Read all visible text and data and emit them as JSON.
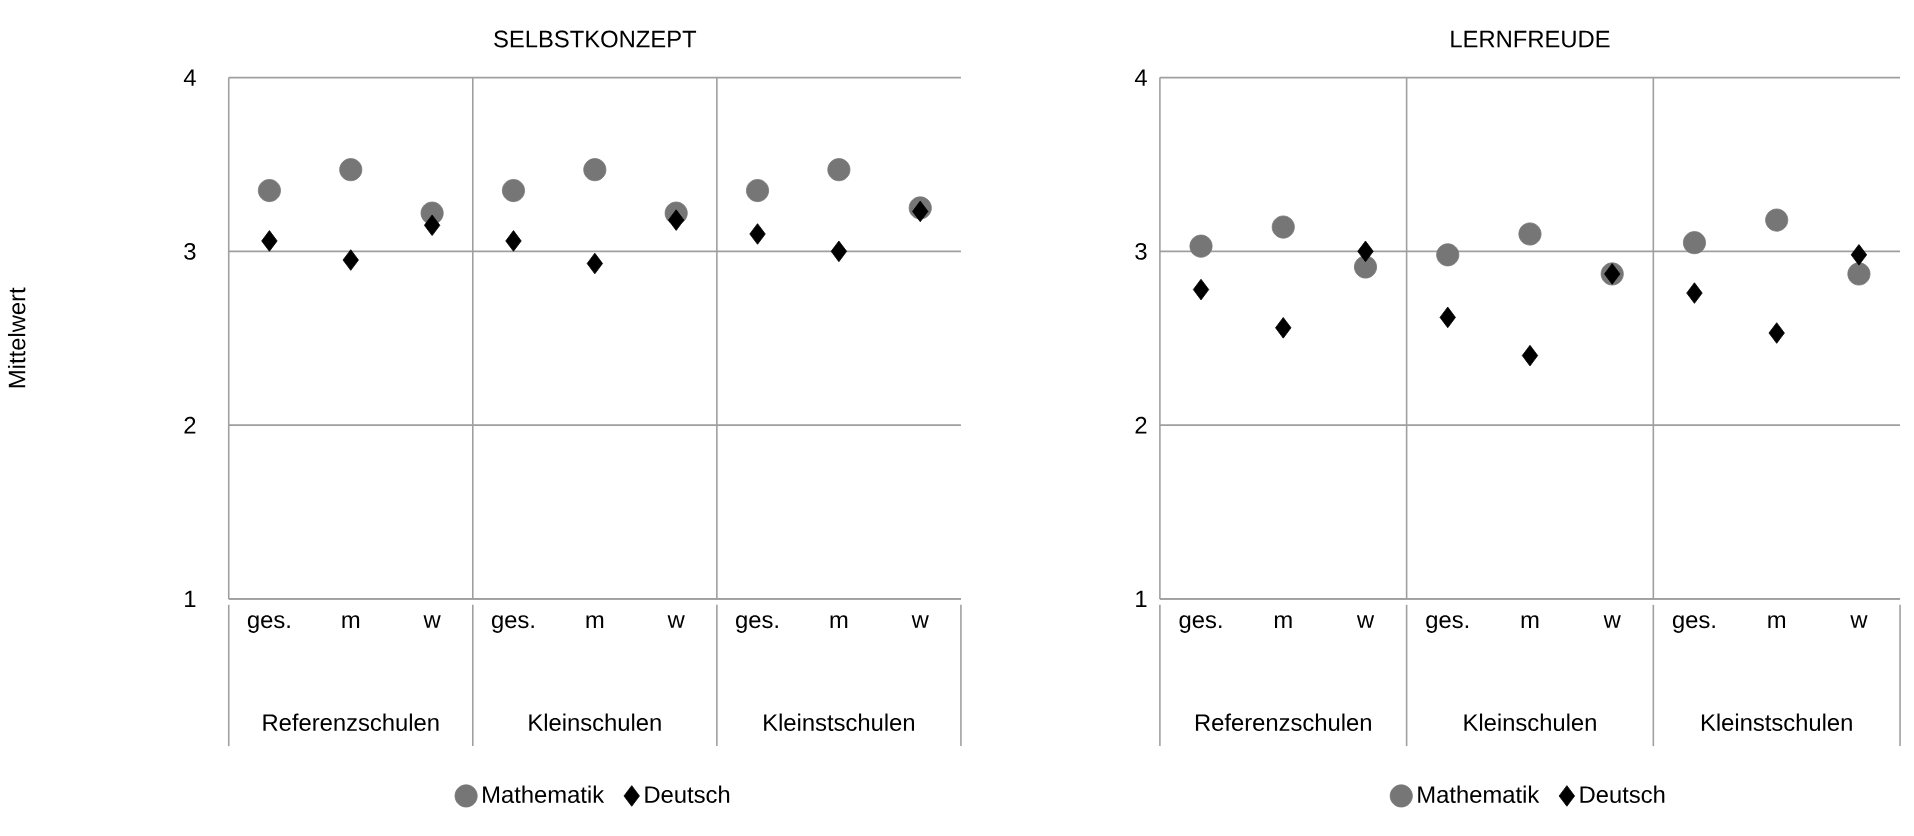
{
  "chart_data": [
    {
      "type": "scatter",
      "title": "SELBSTKONZEPT",
      "ylabel": "Mittelwert",
      "categories": [
        "ges.",
        "m",
        "w",
        "ges.",
        "m",
        "w",
        "ges.",
        "m",
        "w"
      ],
      "annotations": [
        "Referenzschulen",
        "Kleinschulen",
        "Kleinstschulen"
      ],
      "series": [
        {
          "name": "Mathematik",
          "color": "#767676",
          "marker": "circle",
          "values": [
            3.35,
            3.47,
            3.22,
            3.35,
            3.47,
            3.22,
            3.35,
            3.47,
            3.25
          ]
        },
        {
          "name": "Deutsch",
          "color": "#000000",
          "marker": "diamond",
          "values": [
            3.06,
            2.95,
            3.15,
            3.06,
            2.93,
            3.18,
            3.1,
            3.0,
            3.23
          ]
        }
      ],
      "ylim": [
        1,
        4
      ],
      "yticks": [
        1,
        2,
        3,
        4
      ],
      "grid": "y",
      "legend": "bottom"
    },
    {
      "type": "scatter",
      "title": "LERNFREUDE",
      "categories": [
        "ges.",
        "m",
        "w",
        "ges.",
        "m",
        "w",
        "ges.",
        "m",
        "w"
      ],
      "annotations": [
        "Referenzschulen",
        "Kleinschulen",
        "Kleinstschulen"
      ],
      "series": [
        {
          "name": "Mathematik",
          "color": "#767676",
          "marker": "circle",
          "values": [
            3.03,
            3.14,
            2.91,
            2.98,
            3.1,
            2.87,
            3.05,
            3.18,
            2.87
          ]
        },
        {
          "name": "Deutsch",
          "color": "#000000",
          "marker": "diamond",
          "values": [
            2.78,
            2.56,
            3.0,
            2.62,
            2.4,
            2.87,
            2.76,
            2.53,
            2.98
          ]
        }
      ],
      "ylim": [
        1,
        4
      ],
      "yticks": [
        1,
        2,
        3,
        4
      ],
      "grid": "y",
      "legend": "bottom"
    }
  ]
}
